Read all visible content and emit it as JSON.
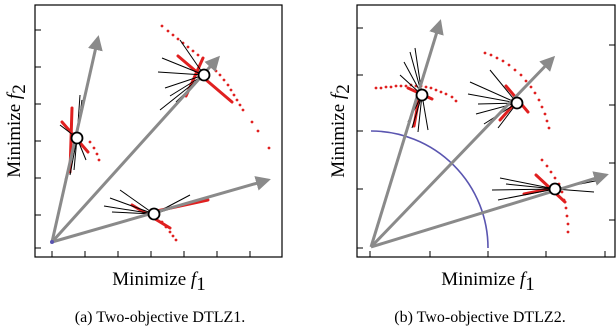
{
  "panels": [
    {
      "caption": "(a) Two-objective DTLZ1.",
      "xlabel": "Minimize",
      "xvar": "f",
      "xsub": "1",
      "ylabel": "Minimize",
      "yvar": "f",
      "ysub": "2"
    },
    {
      "caption": "(b) Two-objective DTLZ2.",
      "xlabel": "Minimize",
      "xvar": "f",
      "xsub": "1",
      "ylabel": "Minimize",
      "yvar": "f",
      "ysub": "2"
    }
  ],
  "colors": {
    "frame": "#000000",
    "vector": "#8a8a8a",
    "front_dots": "#e02020",
    "arc": "#5a55b0",
    "neighbor_lines": "#000000",
    "solution_marker_fill": "#ffffff"
  }
}
